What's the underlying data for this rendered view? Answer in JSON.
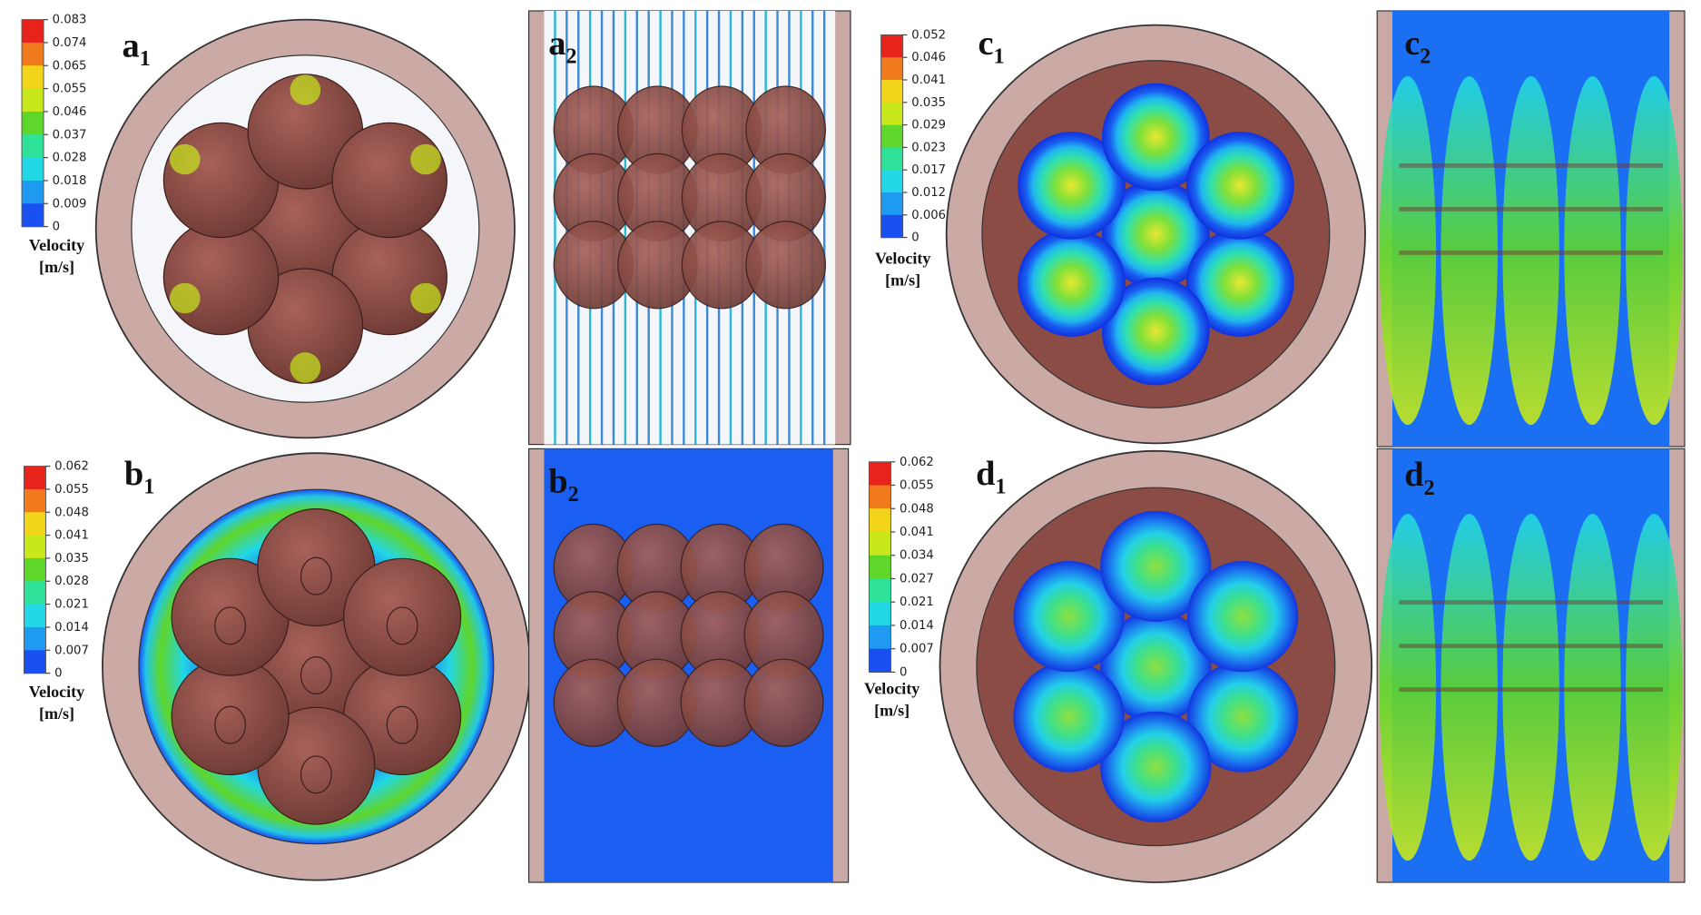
{
  "panels": [
    {
      "letter": "a",
      "sub": "1"
    },
    {
      "letter": "a",
      "sub": "2"
    },
    {
      "letter": "b",
      "sub": "1"
    },
    {
      "letter": "b",
      "sub": "2"
    },
    {
      "letter": "c",
      "sub": "1"
    },
    {
      "letter": "c",
      "sub": "2"
    },
    {
      "letter": "d",
      "sub": "1"
    },
    {
      "letter": "d",
      "sub": "2"
    }
  ],
  "colorbars": [
    {
      "ticks": [
        0.083,
        0.074,
        0.065,
        0.055,
        0.046,
        0.037,
        0.028,
        0.018,
        0.009,
        0
      ],
      "title": "Velocity",
      "unit": "[m/s]"
    },
    {
      "ticks": [
        0.062,
        0.055,
        0.048,
        0.041,
        0.035,
        0.028,
        0.021,
        0.014,
        0.007,
        0
      ],
      "title": "Velocity",
      "unit": "[m/s]"
    },
    {
      "ticks": [
        0.052,
        0.046,
        0.041,
        0.035,
        0.029,
        0.023,
        0.017,
        0.012,
        0.006,
        0
      ],
      "title": "Velocity",
      "unit": "[m/s]"
    },
    {
      "ticks": [
        0.062,
        0.055,
        0.048,
        0.041,
        0.034,
        0.027,
        0.021,
        0.014,
        0.007,
        0
      ],
      "title": "Velocity",
      "unit": "[m/s]"
    }
  ]
}
